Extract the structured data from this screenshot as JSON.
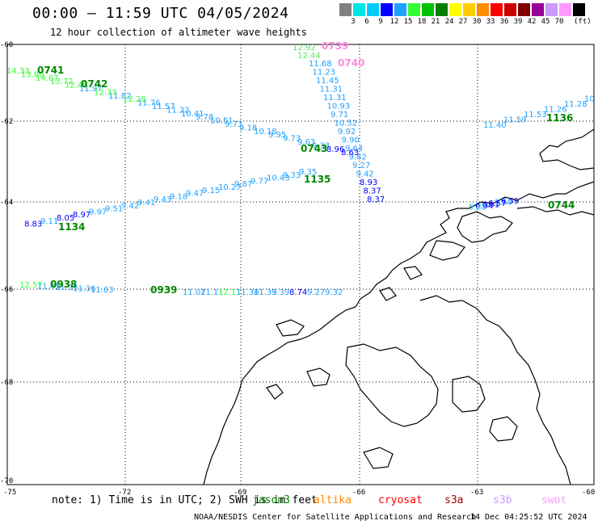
{
  "header": {
    "title": "00:00 – 11:59 UTC 04/05/2024",
    "subtitle": "12 hour collection of altimeter wave heights"
  },
  "color_scale": {
    "unit": "(ft)",
    "bins": [
      {
        "label": "",
        "color": "#808080"
      },
      {
        "label": "3",
        "color": "#00e5e5"
      },
      {
        "label": "6",
        "color": "#00ccff"
      },
      {
        "label": "9",
        "color": "#0000ff"
      },
      {
        "label": "12",
        "color": "#1fa0ff"
      },
      {
        "label": "15",
        "color": "#33ff33"
      },
      {
        "label": "18",
        "color": "#00c000"
      },
      {
        "label": "21",
        "color": "#008000"
      },
      {
        "label": "24",
        "color": "#ffff00"
      },
      {
        "label": "27",
        "color": "#ffcc00"
      },
      {
        "label": "30",
        "color": "#ff8c00"
      },
      {
        "label": "33",
        "color": "#ff0000"
      },
      {
        "label": "36",
        "color": "#cc0000"
      },
      {
        "label": "39",
        "color": "#800000"
      },
      {
        "label": "42",
        "color": "#990099"
      },
      {
        "label": "45",
        "color": "#cc99ff"
      },
      {
        "label": "70",
        "color": "#ff99ff"
      },
      {
        "label": "",
        "color": "#000000"
      }
    ]
  },
  "axes": {
    "lat_labels": [
      "-60",
      "-62",
      "-64",
      "-66",
      "-68",
      "-70"
    ],
    "lon_labels": [
      "-75",
      "-72",
      "-69",
      "-66",
      "-63",
      "-60"
    ]
  },
  "tracks": [
    {
      "name": "0739",
      "color": "#ff88dd",
      "time_label": "0739",
      "values": [
        "12.92",
        "12.44"
      ],
      "value_color": "#66dd66"
    },
    {
      "name": "0740",
      "color": "#ff88dd",
      "time_label": "0740",
      "values": [
        "11.68",
        "11.23",
        "11.45",
        "11.31",
        "11.31",
        "10.93",
        "9.71",
        "10.52",
        "9.92",
        "9.90",
        "9.64",
        "9.82",
        "9.27",
        "9.42",
        "8.93",
        "8.37",
        "8.37"
      ]
    },
    {
      "name": "0741",
      "color": "#008800",
      "time_label": "0741",
      "values": [
        "14.33",
        "13.80",
        "14.67",
        "13.72",
        "12.45",
        "11.97",
        "12.33",
        "11.82",
        "12.28",
        "11.76",
        "11.57",
        "11.22",
        "10.41",
        "9.78",
        "10.51",
        "9.73",
        "9.18",
        "10.18",
        "9.95",
        "9.73",
        "9.63",
        "9.33",
        "8.96",
        "8.63"
      ]
    },
    {
      "name": "0742",
      "color": "#008800",
      "time_label": "0742"
    },
    {
      "name": "0743",
      "color": "#008800",
      "time_label": "0743"
    },
    {
      "name": "1136",
      "color": "#008800",
      "time_label": "1136",
      "values": [
        "11.40",
        "11.59",
        "11.53",
        "11.26",
        "11.28",
        "10"
      ]
    },
    {
      "name": "1135",
      "color": "#008800",
      "time_label": "1135",
      "values": [
        "9.35",
        "9.33",
        "10.43",
        "9.77",
        "9.87",
        "10.27",
        "9.15",
        "9.47",
        "9.18",
        "9.43",
        "9.41",
        "9.42",
        "9.51",
        "9.97",
        "8.97",
        "8.05",
        "9.11",
        "8.83"
      ]
    },
    {
      "name": "1134",
      "color": "#008800",
      "time_label": "1134"
    },
    {
      "name": "0938",
      "color": "#008800",
      "time_label": "0938",
      "values": [
        "12.57",
        "11.43",
        "11.35",
        "11.36",
        "11.63"
      ]
    },
    {
      "name": "0939",
      "color": "#008800",
      "time_label": "0939",
      "values": [
        "11.02",
        "11.11",
        "12.11",
        "11.38",
        "11.33",
        "9.39",
        "8.74",
        "9.27",
        "9.32"
      ]
    },
    {
      "name": "0744",
      "color": "#008800",
      "time_label": "0744",
      "values": [
        "6.59",
        "9.59",
        "6.57",
        "6.51",
        "6.94",
        "5.25"
      ]
    }
  ],
  "note": {
    "text": "note: 1) Time is in UTC; 2) SWH is in feet"
  },
  "legend": [
    {
      "label": "jason3",
      "color": "#008800"
    },
    {
      "label": "altika",
      "color": "#ff8c00"
    },
    {
      "label": "cryosat",
      "color": "#ff0000"
    },
    {
      "label": "s3a",
      "color": "#990000"
    },
    {
      "label": "s3b",
      "color": "#cc99ff"
    },
    {
      "label": "swot",
      "color": "#ff99ff"
    }
  ],
  "footer": {
    "credit": "NOAA/NESDIS Center for Satellite Applications and Research",
    "generated": "14 Dec 04:25:52 UTC 2024"
  }
}
